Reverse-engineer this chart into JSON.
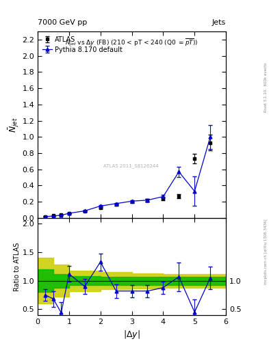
{
  "title_left": "7000 GeV pp",
  "title_right": "Jets",
  "ylabel_main": "$\\bar{N}_{jet}$",
  "ylabel_ratio": "Ratio to ATLAS",
  "xlabel": "$|\\Delta y|$",
  "right_label": "mcplots.cern.ch [arXiv:1306.3436]",
  "right_label2": "Rivet 3.1.10,  600k events",
  "watermark": "ATLAS 2011_S8126244",
  "atlas_x": [
    0.25,
    0.5,
    0.75,
    1.0,
    1.5,
    2.0,
    2.5,
    3.0,
    3.5,
    4.0,
    4.5,
    5.0,
    5.5
  ],
  "atlas_y": [
    0.02,
    0.03,
    0.04,
    0.06,
    0.085,
    0.13,
    0.165,
    0.2,
    0.22,
    0.24,
    0.27,
    0.73,
    0.93
  ],
  "atlas_yerr": [
    0.003,
    0.004,
    0.004,
    0.005,
    0.007,
    0.009,
    0.012,
    0.014,
    0.016,
    0.018,
    0.022,
    0.06,
    0.1
  ],
  "mc_x": [
    0.25,
    0.5,
    0.75,
    1.0,
    1.5,
    2.0,
    2.5,
    3.0,
    3.5,
    4.0,
    4.5,
    5.0,
    5.5
  ],
  "mc_y": [
    0.018,
    0.025,
    0.035,
    0.058,
    0.088,
    0.148,
    0.178,
    0.208,
    0.22,
    0.265,
    0.57,
    0.33,
    1.0
  ],
  "mc_yerr": [
    0.002,
    0.003,
    0.003,
    0.004,
    0.006,
    0.009,
    0.011,
    0.013,
    0.015,
    0.018,
    0.065,
    0.18,
    0.15
  ],
  "ratio_x": [
    0.25,
    0.5,
    0.75,
    1.0,
    1.5,
    2.0,
    2.5,
    3.0,
    3.5,
    4.0,
    4.5,
    5.0,
    5.5
  ],
  "ratio_y": [
    0.75,
    0.68,
    0.44,
    1.12,
    0.9,
    1.33,
    0.82,
    0.82,
    0.82,
    0.88,
    1.07,
    0.45,
    1.05
  ],
  "ratio_yerr": [
    0.1,
    0.14,
    0.18,
    0.14,
    0.13,
    0.15,
    0.12,
    0.11,
    0.11,
    0.11,
    0.25,
    0.22,
    0.2
  ],
  "band_x_edges": [
    0.0,
    0.5,
    1.0,
    2.0,
    3.0,
    4.0,
    6.0
  ],
  "band_green_lo": [
    0.8,
    0.88,
    0.92,
    0.93,
    0.93,
    0.93,
    0.93
  ],
  "band_green_hi": [
    1.2,
    1.12,
    1.08,
    1.07,
    1.07,
    1.07,
    1.07
  ],
  "band_yellow_lo": [
    0.6,
    0.72,
    0.82,
    0.85,
    0.87,
    0.88,
    0.88
  ],
  "band_yellow_hi": [
    1.4,
    1.28,
    1.18,
    1.15,
    1.13,
    1.12,
    1.12
  ],
  "ylim_main": [
    0,
    2.3
  ],
  "ylim_ratio": [
    0.4,
    2.1
  ],
  "xlim": [
    0,
    6.0
  ],
  "yticks_main": [
    0.0,
    0.2,
    0.4,
    0.6,
    0.8,
    1.0,
    1.2,
    1.4,
    1.6,
    1.8,
    2.0,
    2.2
  ],
  "yticks_ratio": [
    0.5,
    1.0,
    1.5,
    2.0
  ],
  "mc_color": "#0000cc",
  "atlas_color": "#000000",
  "green_color": "#00bb00",
  "yellow_color": "#cccc00",
  "legend_atlas": "ATLAS",
  "legend_mc": "Pythia 8.170 default"
}
